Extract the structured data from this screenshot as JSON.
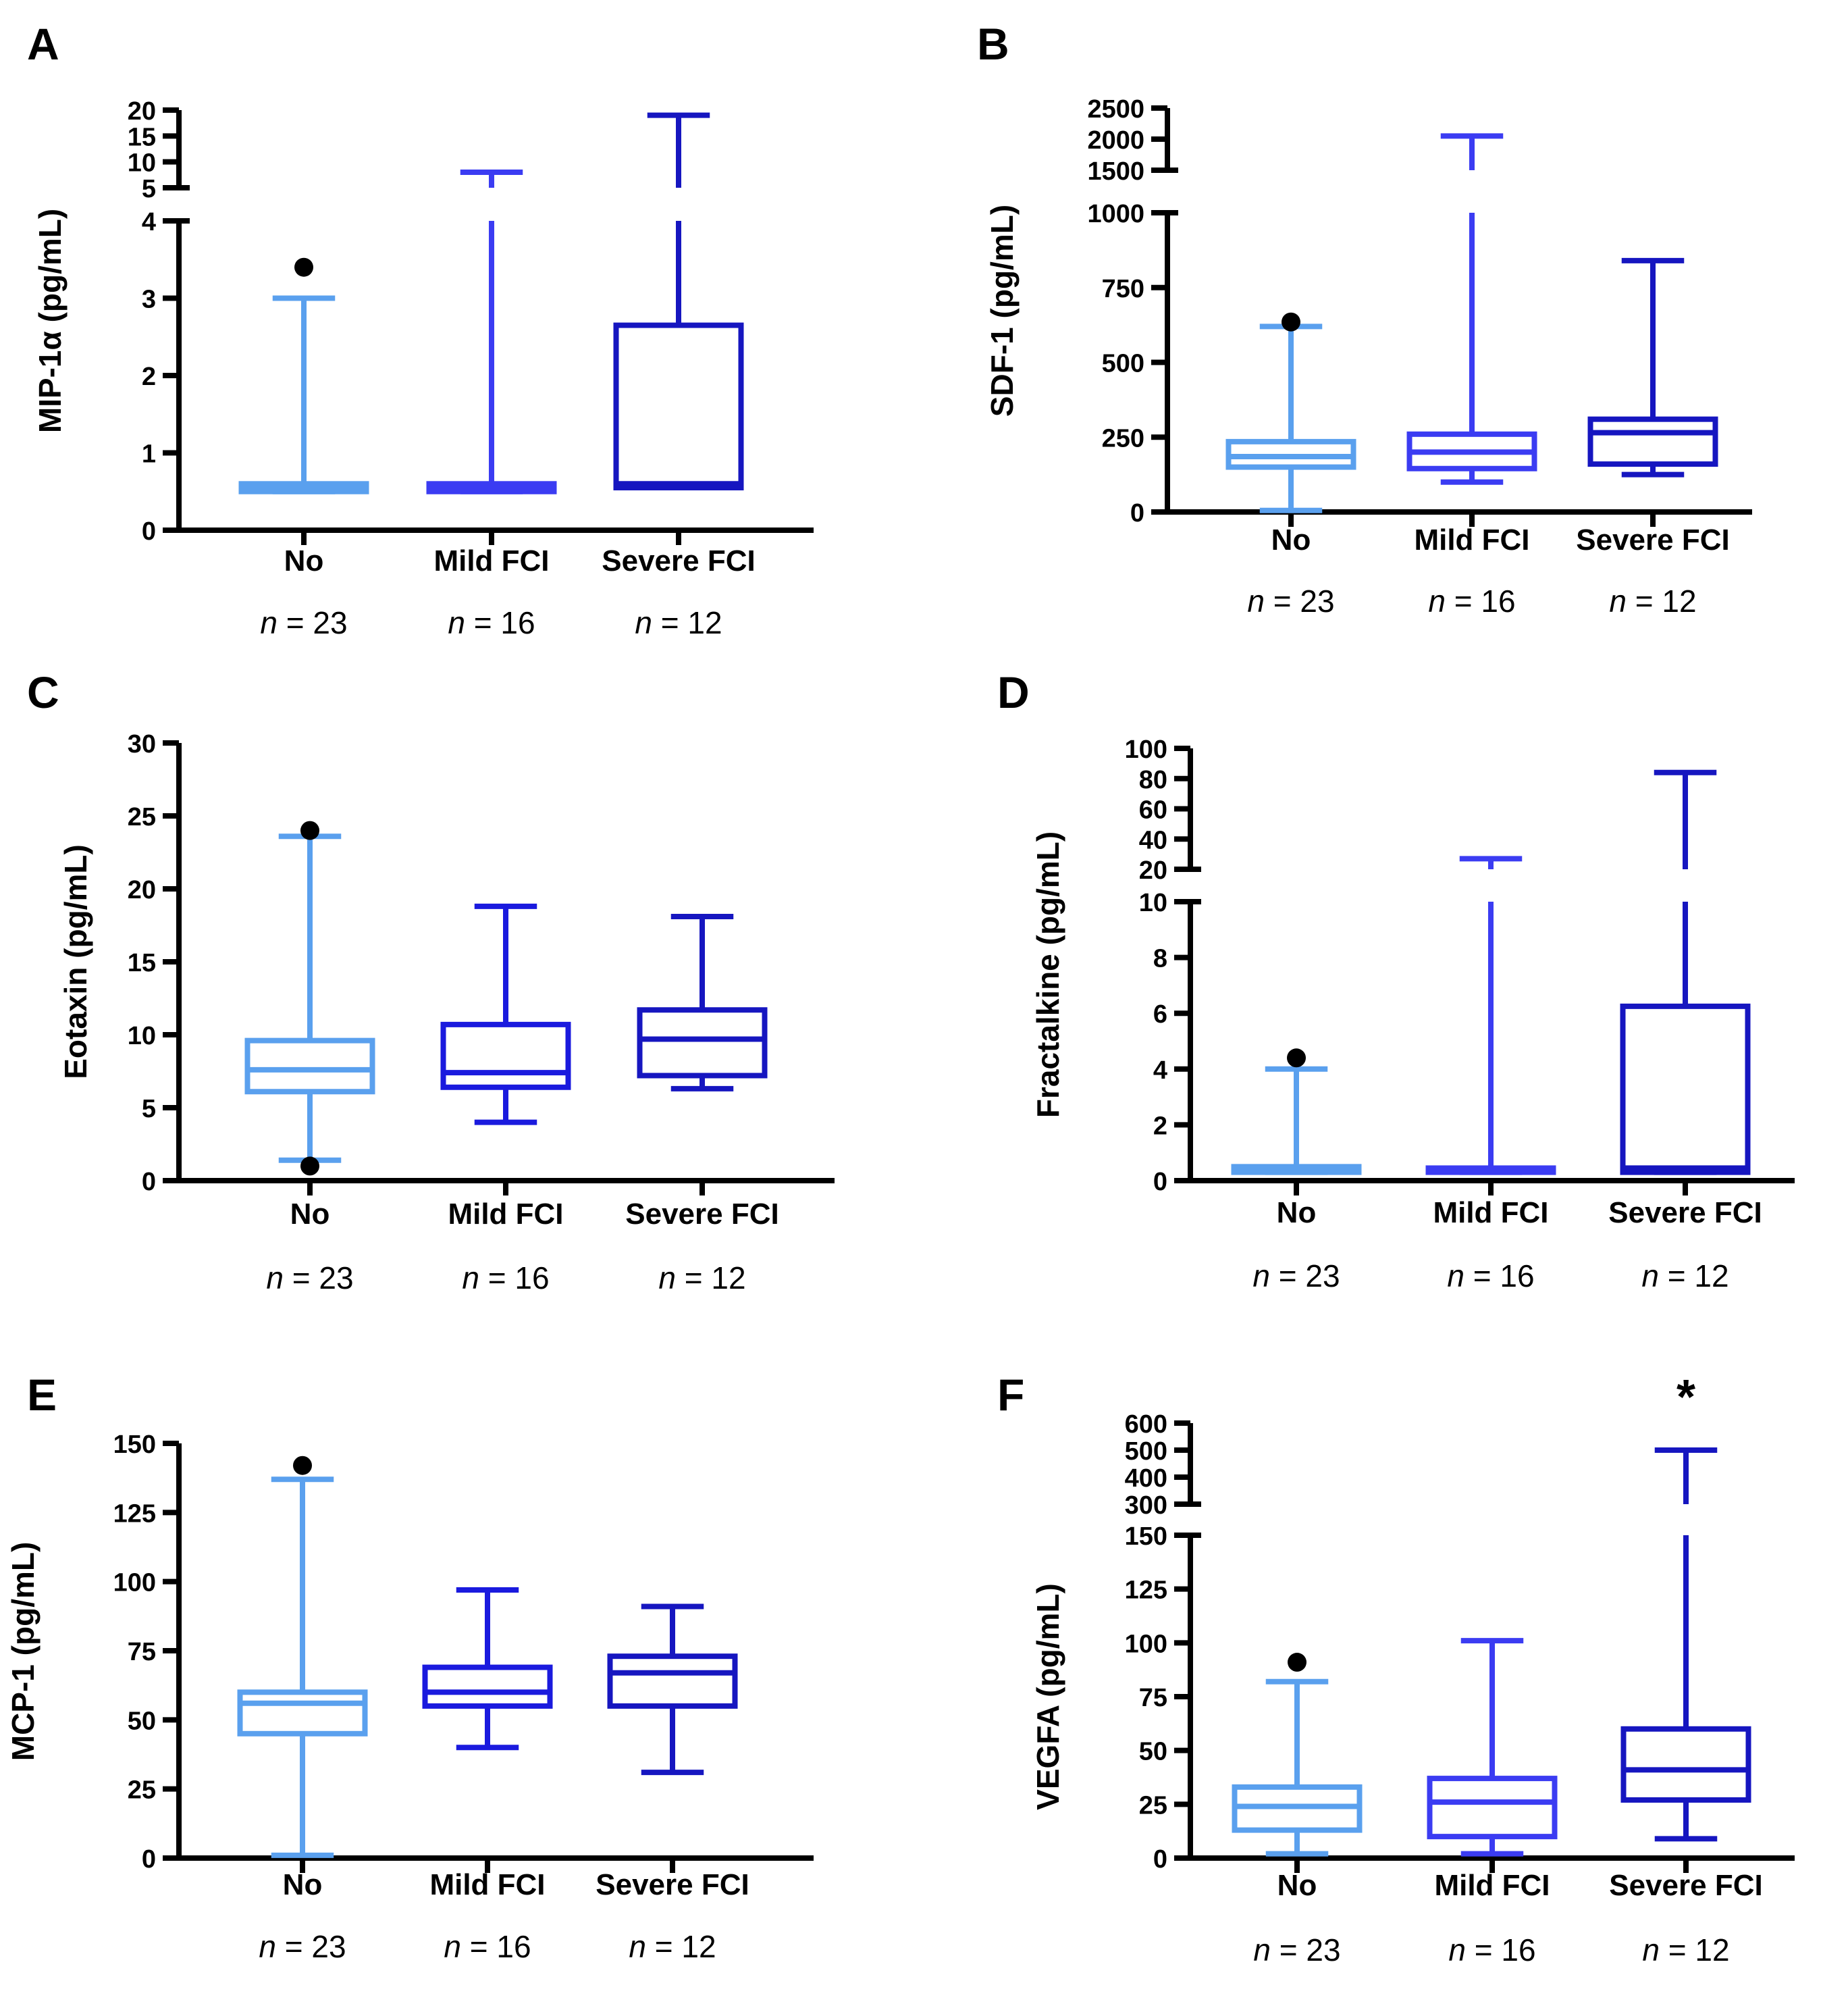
{
  "chart_data": [
    {
      "type": "box",
      "panel": "A",
      "ylabel": "MIP-1α (pg/mL)",
      "categories": [
        "No",
        "Mild FCI",
        "Severe FCI"
      ],
      "n_labels": [
        {
          "italic": "n",
          "rest": " = 23"
        },
        {
          "italic": "n",
          "rest": " = 16"
        },
        {
          "italic": "n",
          "rest": " = 12"
        }
      ],
      "lower_ticks": [
        0,
        1,
        2,
        3,
        4
      ],
      "upper_ticks": [
        5,
        10,
        15,
        20
      ],
      "lower_range": [
        0,
        4
      ],
      "upper_range": [
        5,
        20
      ],
      "boxes": [
        {
          "min": 0.5,
          "q1": 0.5,
          "median": 0.55,
          "q3": 0.6,
          "max": 3.0,
          "color": "#5aa0ee"
        },
        {
          "min": 0.5,
          "q1": 0.5,
          "median": 0.55,
          "q3": 0.6,
          "max": 8,
          "color": "#3b3cf2"
        },
        {
          "min": 0.55,
          "q1": 0.55,
          "median": 0.6,
          "q3": 2.65,
          "max": 19,
          "color": "#1616c0"
        }
      ],
      "outliers": [
        {
          "category": 0,
          "value": 3.4
        }
      ],
      "annotations": []
    },
    {
      "type": "box",
      "panel": "B",
      "ylabel": "SDF-1 (pg/mL)",
      "categories": [
        "No",
        "Mild FCI",
        "Severe FCI"
      ],
      "n_labels": [
        {
          "italic": "n",
          "rest": " = 23"
        },
        {
          "italic": "n",
          "rest": " = 16"
        },
        {
          "italic": "n",
          "rest": " = 12"
        }
      ],
      "lower_ticks": [
        0,
        250,
        500,
        750,
        1000
      ],
      "upper_ticks": [
        1500,
        2000,
        2500
      ],
      "lower_range": [
        0,
        1000
      ],
      "upper_range": [
        1500,
        2500
      ],
      "boxes": [
        {
          "min": 5,
          "q1": 150,
          "median": 185,
          "q3": 235,
          "max": 620,
          "color": "#5aa0ee"
        },
        {
          "min": 100,
          "q1": 145,
          "median": 200,
          "q3": 260,
          "max": 2050,
          "color": "#3b3cf2"
        },
        {
          "min": 125,
          "q1": 160,
          "median": 265,
          "q3": 310,
          "max": 840,
          "color": "#1616c0"
        }
      ],
      "outliers": [
        {
          "category": 0,
          "value": 635
        }
      ],
      "annotations": []
    },
    {
      "type": "box",
      "panel": "C",
      "ylabel": "Eotaxin (pg/mL)",
      "categories": [
        "No",
        "Mild FCI",
        "Severe FCI"
      ],
      "n_labels": [
        {
          "italic": "n",
          "rest": " = 23"
        },
        {
          "italic": "n",
          "rest": " = 16"
        },
        {
          "italic": "n",
          "rest": " = 12"
        }
      ],
      "lower_ticks": [
        0,
        5,
        10,
        15,
        20,
        25,
        30
      ],
      "upper_ticks": [],
      "lower_range": [
        0,
        30
      ],
      "upper_range": null,
      "boxes": [
        {
          "min": 1.4,
          "q1": 6.1,
          "median": 7.6,
          "q3": 9.6,
          "max": 23.6,
          "color": "#5aa0ee"
        },
        {
          "min": 4.0,
          "q1": 6.4,
          "median": 7.4,
          "q3": 10.7,
          "max": 18.8,
          "color": "#1a1ade"
        },
        {
          "min": 6.3,
          "q1": 7.2,
          "median": 9.7,
          "q3": 11.7,
          "max": 18.1,
          "color": "#1616c0"
        }
      ],
      "outliers": [
        {
          "category": 0,
          "value": 24.0
        },
        {
          "category": 0,
          "value": 1.0
        }
      ],
      "annotations": []
    },
    {
      "type": "box",
      "panel": "D",
      "ylabel": "Fractalkine (pg/mL)",
      "categories": [
        "No",
        "Mild FCI",
        "Severe FCI"
      ],
      "n_labels": [
        {
          "italic": "n",
          "rest": " = 23"
        },
        {
          "italic": "n",
          "rest": " = 16"
        },
        {
          "italic": "n",
          "rest": " = 12"
        }
      ],
      "lower_ticks": [
        0,
        2,
        4,
        6,
        8,
        10
      ],
      "upper_ticks": [
        20,
        40,
        60,
        80,
        100
      ],
      "lower_range": [
        0,
        10
      ],
      "upper_range": [
        20,
        100
      ],
      "boxes": [
        {
          "min": 0.3,
          "q1": 0.3,
          "median": 0.4,
          "q3": 0.5,
          "max": 4.0,
          "color": "#5aa0ee"
        },
        {
          "min": 0.3,
          "q1": 0.3,
          "median": 0.35,
          "q3": 0.45,
          "max": 27,
          "color": "#3b3cf2"
        },
        {
          "min": 0.3,
          "q1": 0.3,
          "median": 0.45,
          "q3": 6.25,
          "max": 84,
          "color": "#1616c0"
        }
      ],
      "outliers": [
        {
          "category": 0,
          "value": 4.4
        }
      ],
      "annotations": []
    },
    {
      "type": "box",
      "panel": "E",
      "ylabel": "MCP-1 (pg/mL)",
      "categories": [
        "No",
        "Mild FCI",
        "Severe FCI"
      ],
      "n_labels": [
        {
          "italic": "n",
          "rest": " = 23"
        },
        {
          "italic": "n",
          "rest": " = 16"
        },
        {
          "italic": "n",
          "rest": " = 12"
        }
      ],
      "lower_ticks": [
        0,
        25,
        50,
        75,
        100,
        125,
        150
      ],
      "upper_ticks": [],
      "lower_range": [
        0,
        150
      ],
      "upper_range": null,
      "boxes": [
        {
          "min": 1,
          "q1": 45,
          "median": 56,
          "q3": 60,
          "max": 137,
          "color": "#5aa0ee"
        },
        {
          "min": 40,
          "q1": 55,
          "median": 60,
          "q3": 69,
          "max": 97,
          "color": "#1a1ade"
        },
        {
          "min": 31,
          "q1": 55,
          "median": 67,
          "q3": 73,
          "max": 91,
          "color": "#1616c0"
        }
      ],
      "outliers": [
        {
          "category": 0,
          "value": 142
        }
      ],
      "annotations": []
    },
    {
      "type": "box",
      "panel": "F",
      "ylabel": "VEGFA (pg/mL)",
      "categories": [
        "No",
        "Mild FCI",
        "Severe FCI"
      ],
      "n_labels": [
        {
          "italic": "n",
          "rest": " = 23"
        },
        {
          "italic": "n",
          "rest": " = 16"
        },
        {
          "italic": "n",
          "rest": " = 12"
        }
      ],
      "lower_ticks": [
        0,
        25,
        50,
        75,
        100,
        125,
        150
      ],
      "upper_ticks": [
        300,
        400,
        500,
        600
      ],
      "lower_range": [
        0,
        150
      ],
      "upper_range": [
        300,
        600
      ],
      "boxes": [
        {
          "min": 2,
          "q1": 13,
          "median": 24,
          "q3": 33,
          "max": 82,
          "color": "#5aa0ee"
        },
        {
          "min": 2,
          "q1": 10,
          "median": 26,
          "q3": 37,
          "max": 101,
          "color": "#3b3cf2"
        },
        {
          "min": 9,
          "q1": 27,
          "median": 41,
          "q3": 60,
          "max": 500,
          "color": "#1616c0"
        }
      ],
      "outliers": [
        {
          "category": 0,
          "value": 91
        }
      ],
      "annotations": [
        {
          "category": 2,
          "text": "*"
        }
      ]
    }
  ]
}
